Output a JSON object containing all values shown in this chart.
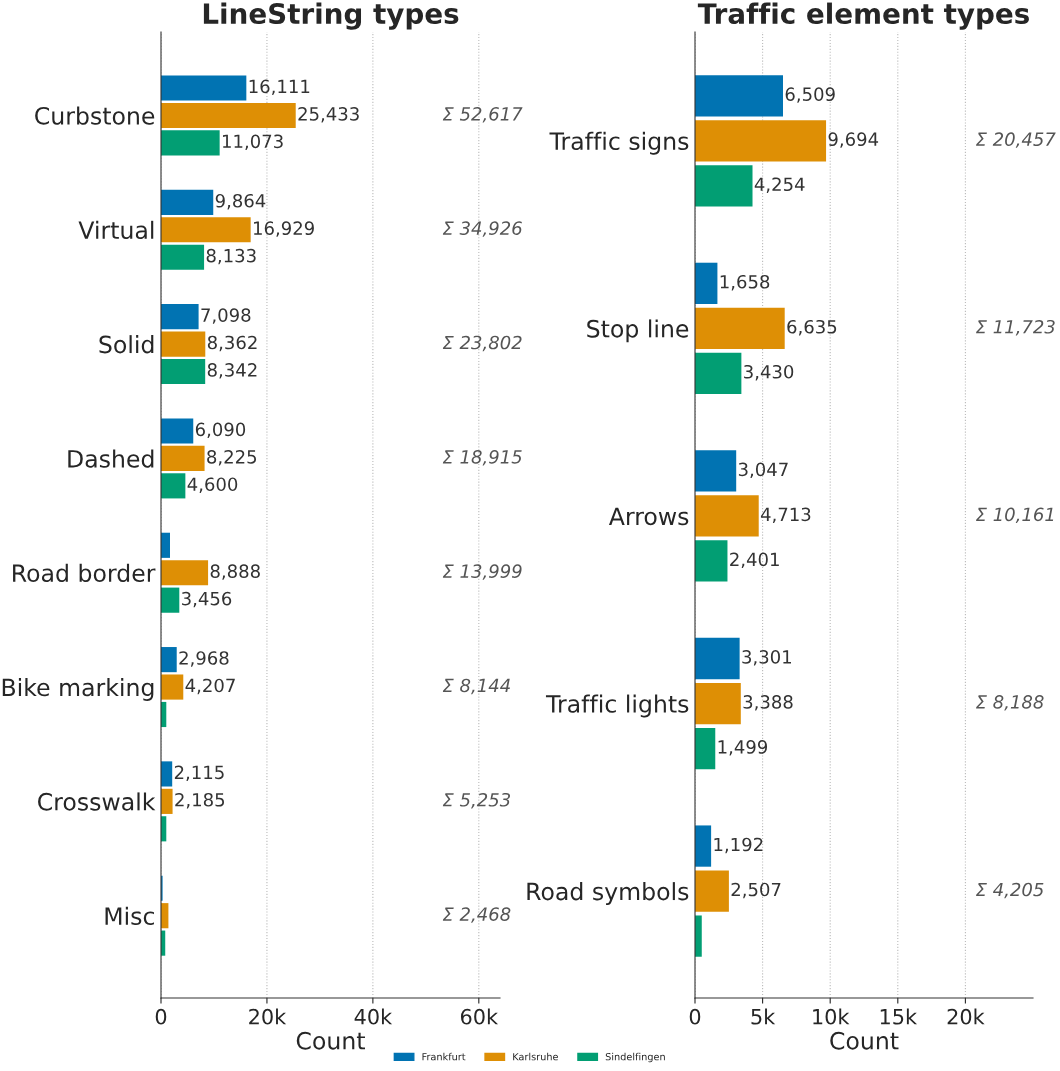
{
  "chart_data": [
    {
      "type": "bar",
      "orientation": "horizontal",
      "title": "LineString types",
      "xlabel": "Count",
      "categories": [
        "Curbstone",
        "Virtual",
        "Solid",
        "Dashed",
        "Road border",
        "Bike marking",
        "Crosswalk",
        "Misc"
      ],
      "series": [
        {
          "name": "Frankfurt",
          "color": "#0173b2",
          "values": [
            16111,
            9864,
            7098,
            6090,
            1700,
            2968,
            2115,
            300
          ],
          "value_labels": [
            "16,111",
            "9,864",
            "7,098",
            "6,090",
            null,
            "2,968",
            "2,115",
            null
          ]
        },
        {
          "name": "Karlsruhe",
          "color": "#de8f05",
          "values": [
            25433,
            16929,
            8362,
            8225,
            8888,
            4207,
            2185,
            1400
          ],
          "value_labels": [
            "25,433",
            "16,929",
            "8,362",
            "8,225",
            "8,888",
            "4,207",
            "2,185",
            null
          ]
        },
        {
          "name": "Sindelfingen",
          "color": "#029e73",
          "values": [
            11073,
            8133,
            8342,
            4600,
            3456,
            1000,
            1000,
            800
          ],
          "value_labels": [
            "11,073",
            "8,133",
            "8,342",
            "4,600",
            "3,456",
            null,
            null,
            null
          ]
        }
      ],
      "annotations": [
        "Σ 52,617",
        "Σ 34,926",
        "Σ 23,802",
        "Σ 18,915",
        "Σ 13,999",
        "Σ 8,144",
        "Σ 5,253",
        "Σ 2,468"
      ],
      "xlim": [
        0,
        64000
      ],
      "xticks": [
        0,
        {
          "value": 20000,
          "label": "20k"
        },
        {
          "value": 40000,
          "label": "40k"
        },
        {
          "value": 60000,
          "label": "60k"
        }
      ],
      "grid": "x",
      "legend": "bottom"
    },
    {
      "type": "bar",
      "orientation": "horizontal",
      "title": "Traffic element types",
      "xlabel": "Count",
      "categories": [
        "Traffic signs",
        "Stop line",
        "Arrows",
        "Traffic lights",
        "Road symbols"
      ],
      "series": [
        {
          "color": "#0173b2",
          "values": [
            6509,
            1658,
            3047,
            3301,
            1192
          ],
          "value_labels": [
            "6,509",
            "1,658",
            "3,047",
            "3,301",
            "1,192"
          ]
        },
        {
          "color": "#de8f05",
          "values": [
            9694,
            6635,
            4713,
            3388,
            2507
          ],
          "value_labels": [
            "9,694",
            "6,635",
            "4,713",
            "3,388",
            "2,507"
          ]
        },
        {
          "color": "#029e73",
          "values": [
            4254,
            3430,
            2401,
            1499,
            500
          ],
          "value_labels": [
            "4,254",
            "3,430",
            "2,401",
            "1,499",
            null
          ]
        }
      ],
      "annotations": [
        "Σ 20,457",
        "Σ 11,723",
        "Σ 10,161",
        "Σ 8,188",
        "Σ 4,205"
      ],
      "xlim": [
        0,
        25000
      ],
      "xticks": [
        0,
        {
          "value": 5000,
          "label": "5k"
        },
        {
          "value": 10000,
          "label": "10k"
        },
        {
          "value": 15000,
          "label": "15k"
        },
        {
          "value": 20000,
          "label": "20k"
        }
      ],
      "grid": "x"
    }
  ]
}
